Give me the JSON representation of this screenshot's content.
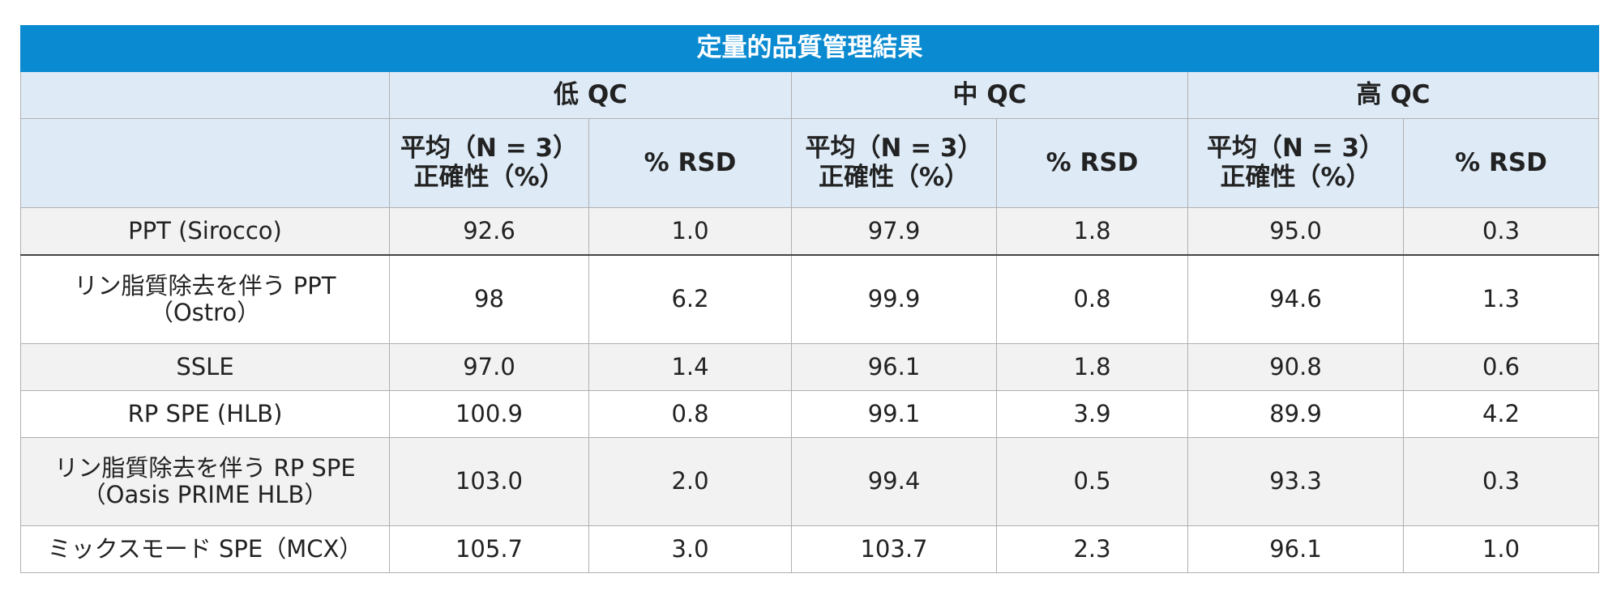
{
  "title": "定量的品質管理結果",
  "groups": [
    "低 QC",
    "中 QC",
    "高 QC"
  ],
  "subheaders": [
    [
      "平均（N = 3）",
      "正確性（%）"
    ],
    [
      "% RSD"
    ],
    [
      "平均（N = 3）",
      "正確性（%）"
    ],
    [
      "% RSD"
    ],
    [
      "平均（N = 3）",
      "正確性（%）"
    ],
    [
      "% RSD"
    ]
  ],
  "rows": [
    {
      "label": [
        "PPT (Sirocco)"
      ],
      "values": [
        "92.6",
        "1.0",
        "97.9",
        "1.8",
        "95.0",
        "0.3"
      ]
    },
    {
      "label": [
        "リン脂質除去を伴う PPT",
        "（Ostro）"
      ],
      "values": [
        "98",
        "6.2",
        "99.9",
        "0.8",
        "94.6",
        "1.3"
      ]
    },
    {
      "label": [
        "SSLE"
      ],
      "values": [
        "97.0",
        "1.4",
        "96.1",
        "1.8",
        "90.8",
        "0.6"
      ]
    },
    {
      "label": [
        "RP SPE (HLB)"
      ],
      "values": [
        "100.9",
        "0.8",
        "99.1",
        "3.9",
        "89.9",
        "4.2"
      ]
    },
    {
      "label": [
        "リン脂質除去を伴う RP SPE",
        "（Oasis PRIME HLB）"
      ],
      "values": [
        "103.0",
        "2.0",
        "99.4",
        "0.5",
        "93.3",
        "0.3"
      ]
    },
    {
      "label": [
        "ミックスモード SPE（MCX）"
      ],
      "values": [
        "105.7",
        "3.0",
        "103.7",
        "2.3",
        "96.1",
        "1.0"
      ]
    }
  ]
}
